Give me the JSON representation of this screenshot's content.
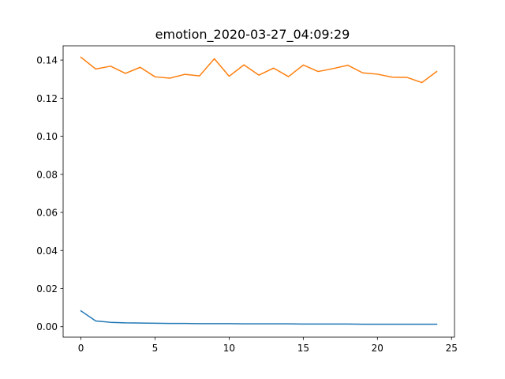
{
  "chart_data": {
    "type": "line",
    "title": "emotion_2020-03-27_04:09:29",
    "xlabel": "",
    "ylabel": "",
    "xlim": [
      -1.2,
      25.2
    ],
    "ylim": [
      -0.0055,
      0.1475
    ],
    "xticks": [
      0,
      5,
      10,
      15,
      20,
      25
    ],
    "xtick_labels": [
      "0",
      "5",
      "10",
      "15",
      "20",
      "25"
    ],
    "yticks": [
      0.0,
      0.02,
      0.04,
      0.06,
      0.08,
      0.1,
      0.12,
      0.14
    ],
    "ytick_labels": [
      "0.00",
      "0.02",
      "0.04",
      "0.06",
      "0.08",
      "0.10",
      "0.12",
      "0.14"
    ],
    "grid": false,
    "x": [
      0,
      1,
      2,
      3,
      4,
      5,
      6,
      7,
      8,
      9,
      10,
      11,
      12,
      13,
      14,
      15,
      16,
      17,
      18,
      19,
      20,
      21,
      22,
      23,
      24
    ],
    "series": [
      {
        "color": "#1f77b4",
        "values": [
          0.0083,
          0.003,
          0.0023,
          0.002,
          0.0019,
          0.0018,
          0.0017,
          0.0017,
          0.0016,
          0.0016,
          0.0016,
          0.0015,
          0.0015,
          0.0015,
          0.0015,
          0.0014,
          0.0014,
          0.0014,
          0.0014,
          0.0013,
          0.0013,
          0.0013,
          0.0013,
          0.0013,
          0.0013
        ]
      },
      {
        "color": "#ff7f0e",
        "values": [
          0.1415,
          0.1353,
          0.1368,
          0.133,
          0.1362,
          0.1312,
          0.1305,
          0.1325,
          0.1317,
          0.1407,
          0.1315,
          0.1375,
          0.1321,
          0.1358,
          0.1313,
          0.1374,
          0.134,
          0.1355,
          0.1373,
          0.1333,
          0.1326,
          0.131,
          0.1309,
          0.1282,
          0.134
        ]
      }
    ]
  }
}
